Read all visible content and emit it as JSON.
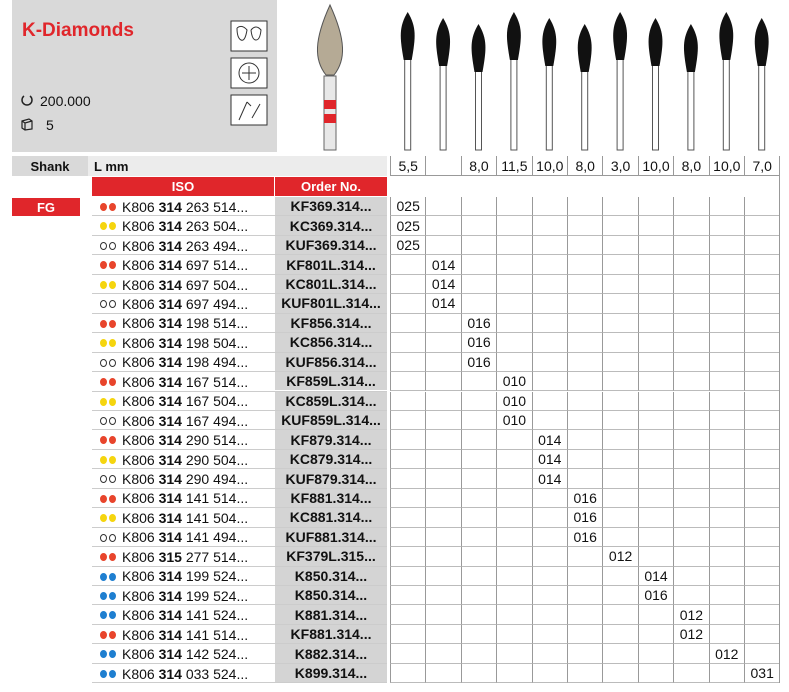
{
  "header": {
    "title": "K-Diamonds",
    "speed": "200.000",
    "pack": "5"
  },
  "table": {
    "shank_label": "Shank",
    "length_label": "L mm",
    "iso_label": "ISO",
    "order_label": "Order No.",
    "shank": "FG",
    "lengths": [
      "5,5",
      null,
      "8,0",
      "11,5",
      "10,0",
      "8,0",
      "3,0",
      "10,0",
      "8,0",
      "10,0",
      "7,0"
    ],
    "rows": [
      {
        "dots": "red",
        "iso": [
          "K806",
          "314",
          "263 514..."
        ],
        "order": "KF369.314...",
        "sizes": [
          "025",
          null,
          null,
          null,
          null,
          null,
          null,
          null,
          null,
          null,
          null
        ]
      },
      {
        "dots": "yellow",
        "iso": [
          "K806",
          "314",
          "263 504..."
        ],
        "order": "KC369.314...",
        "sizes": [
          "025",
          null,
          null,
          null,
          null,
          null,
          null,
          null,
          null,
          null,
          null
        ]
      },
      {
        "dots": "white",
        "iso": [
          "K806",
          "314",
          "263 494..."
        ],
        "order": "KUF369.314...",
        "sizes": [
          "025",
          null,
          null,
          null,
          null,
          null,
          null,
          null,
          null,
          null,
          null
        ]
      },
      {
        "dots": "red",
        "iso": [
          "K806",
          "314",
          "697 514..."
        ],
        "order": "KF801L.314...",
        "sizes": [
          null,
          "014",
          null,
          null,
          null,
          null,
          null,
          null,
          null,
          null,
          null
        ]
      },
      {
        "dots": "yellow",
        "iso": [
          "K806",
          "314",
          "697 504..."
        ],
        "order": "KC801L.314...",
        "sizes": [
          null,
          "014",
          null,
          null,
          null,
          null,
          null,
          null,
          null,
          null,
          null
        ]
      },
      {
        "dots": "white",
        "iso": [
          "K806",
          "314",
          "697 494..."
        ],
        "order": "KUF801L.314...",
        "sizes": [
          null,
          "014",
          null,
          null,
          null,
          null,
          null,
          null,
          null,
          null,
          null
        ]
      },
      {
        "dots": "red",
        "iso": [
          "K806",
          "314",
          "198 514..."
        ],
        "order": "KF856.314...",
        "sizes": [
          null,
          null,
          "016",
          null,
          null,
          null,
          null,
          null,
          null,
          null,
          null
        ]
      },
      {
        "dots": "yellow",
        "iso": [
          "K806",
          "314",
          "198 504..."
        ],
        "order": "KC856.314...",
        "sizes": [
          null,
          null,
          "016",
          null,
          null,
          null,
          null,
          null,
          null,
          null,
          null
        ]
      },
      {
        "dots": "white",
        "iso": [
          "K806",
          "314",
          "198 494..."
        ],
        "order": "KUF856.314...",
        "sizes": [
          null,
          null,
          "016",
          null,
          null,
          null,
          null,
          null,
          null,
          null,
          null
        ]
      },
      {
        "dots": "red",
        "iso": [
          "K806",
          "314",
          "167 514..."
        ],
        "order": "KF859L.314...",
        "sizes": [
          null,
          null,
          null,
          "010",
          null,
          null,
          null,
          null,
          null,
          null,
          null
        ]
      },
      {
        "dots": "yellow",
        "iso": [
          "K806",
          "314",
          "167 504..."
        ],
        "order": "KC859L.314...",
        "sizes": [
          null,
          null,
          null,
          "010",
          null,
          null,
          null,
          null,
          null,
          null,
          null
        ]
      },
      {
        "dots": "white",
        "iso": [
          "K806",
          "314",
          "167 494..."
        ],
        "order": "KUF859L.314...",
        "sizes": [
          null,
          null,
          null,
          "010",
          null,
          null,
          null,
          null,
          null,
          null,
          null
        ]
      },
      {
        "dots": "red",
        "iso": [
          "K806",
          "314",
          "290 514..."
        ],
        "order": "KF879.314...",
        "sizes": [
          null,
          null,
          null,
          null,
          "014",
          null,
          null,
          null,
          null,
          null,
          null
        ]
      },
      {
        "dots": "yellow",
        "iso": [
          "K806",
          "314",
          "290 504..."
        ],
        "order": "KC879.314...",
        "sizes": [
          null,
          null,
          null,
          null,
          "014",
          null,
          null,
          null,
          null,
          null,
          null
        ]
      },
      {
        "dots": "white",
        "iso": [
          "K806",
          "314",
          "290 494..."
        ],
        "order": "KUF879.314...",
        "sizes": [
          null,
          null,
          null,
          null,
          "014",
          null,
          null,
          null,
          null,
          null,
          null
        ]
      },
      {
        "dots": "red",
        "iso": [
          "K806",
          "314",
          "141 514..."
        ],
        "order": "KF881.314...",
        "sizes": [
          null,
          null,
          null,
          null,
          null,
          "016",
          null,
          null,
          null,
          null,
          null
        ]
      },
      {
        "dots": "yellow",
        "iso": [
          "K806",
          "314",
          "141 504..."
        ],
        "order": "KC881.314...",
        "sizes": [
          null,
          null,
          null,
          null,
          null,
          "016",
          null,
          null,
          null,
          null,
          null
        ]
      },
      {
        "dots": "white",
        "iso": [
          "K806",
          "314",
          "141 494..."
        ],
        "order": "KUF881.314...",
        "sizes": [
          null,
          null,
          null,
          null,
          null,
          "016",
          null,
          null,
          null,
          null,
          null
        ]
      },
      {
        "dots": "red",
        "iso": [
          "K806",
          "315",
          "277 514..."
        ],
        "order": "KF379L.315...",
        "sizes": [
          null,
          null,
          null,
          null,
          null,
          null,
          "012",
          null,
          null,
          null,
          null
        ]
      },
      {
        "dots": "blue",
        "iso": [
          "K806",
          "314",
          "199 524..."
        ],
        "order": "K850.314...",
        "sizes": [
          null,
          null,
          null,
          null,
          null,
          null,
          null,
          "014",
          null,
          null,
          null
        ]
      },
      {
        "dots": "blue",
        "iso": [
          "K806",
          "314",
          "199 524..."
        ],
        "order": "K850.314...",
        "sizes": [
          null,
          null,
          null,
          null,
          null,
          null,
          null,
          "016",
          null,
          null,
          null
        ]
      },
      {
        "dots": "blue",
        "iso": [
          "K806",
          "314",
          "141 524..."
        ],
        "order": "K881.314...",
        "sizes": [
          null,
          null,
          null,
          null,
          null,
          null,
          null,
          null,
          "012",
          null,
          null
        ]
      },
      {
        "dots": "red",
        "iso": [
          "K806",
          "314",
          "141 514..."
        ],
        "order": "KF881.314...",
        "sizes": [
          null,
          null,
          null,
          null,
          null,
          null,
          null,
          null,
          "012",
          null,
          null
        ]
      },
      {
        "dots": "blue",
        "iso": [
          "K806",
          "314",
          "142 524..."
        ],
        "order": "K882.314...",
        "sizes": [
          null,
          null,
          null,
          null,
          null,
          null,
          null,
          null,
          null,
          "012",
          null
        ]
      },
      {
        "dots": "blue",
        "iso": [
          "K806",
          "314",
          "033 524..."
        ],
        "order": "K899.314...",
        "sizes": [
          null,
          null,
          null,
          null,
          null,
          null,
          null,
          null,
          null,
          null,
          "031"
        ]
      }
    ]
  }
}
